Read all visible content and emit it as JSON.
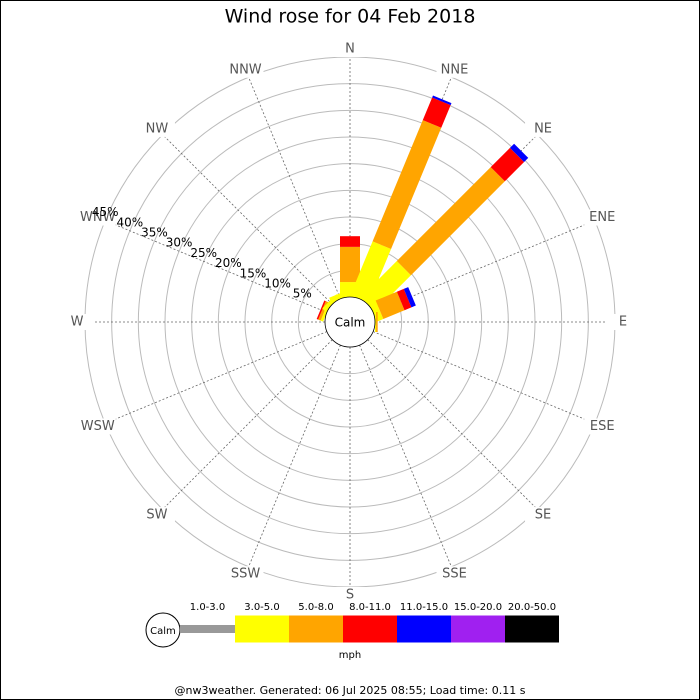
{
  "chart_data": {
    "type": "wind_rose",
    "title": "Wind rose for 04 Feb 2018",
    "directions": [
      "N",
      "NNE",
      "NE",
      "ENE",
      "E",
      "ESE",
      "SE",
      "SSE",
      "S",
      "SSW",
      "SW",
      "WSW",
      "W",
      "WNW",
      "NW",
      "NNW"
    ],
    "center_label": "Calm",
    "series": [
      {
        "name": "1.0-3.0",
        "color": "#999999",
        "values": [
          0,
          0,
          0,
          0,
          0,
          0,
          0,
          0,
          0,
          0,
          0,
          0,
          0,
          0,
          0,
          0
        ]
      },
      {
        "name": "3.0-5.0",
        "color": "#ffff00",
        "values": [
          2.8,
          10.9,
          9.6,
          1.3,
          0.2,
          0,
          0,
          0,
          0,
          0,
          0,
          0,
          0,
          0.5,
          0.8,
          1.0
        ]
      },
      {
        "name": "5.0-8.0",
        "color": "#ffa500",
        "values": [
          6.6,
          24.6,
          24.9,
          4.3,
          0.3,
          0,
          0,
          0,
          0,
          0,
          0,
          0,
          0,
          0.5,
          0,
          0
        ]
      },
      {
        "name": "8.0-11.0",
        "color": "#ff0000",
        "values": [
          2.0,
          4.6,
          5.1,
          1.4,
          0,
          0,
          0,
          0,
          0,
          0,
          0,
          0,
          0,
          0.3,
          0,
          0
        ]
      },
      {
        "name": "11.0-15.0",
        "color": "#0000ff",
        "values": [
          0,
          0.4,
          1.1,
          0.9,
          0,
          0,
          0,
          0,
          0,
          0,
          0,
          0,
          0,
          0,
          0,
          0
        ]
      },
      {
        "name": "15.0-20.0",
        "color": "#a020f0",
        "values": [
          0,
          0,
          0,
          0,
          0,
          0,
          0,
          0,
          0,
          0,
          0,
          0,
          0,
          0,
          0,
          0
        ]
      },
      {
        "name": "20.0-50.0",
        "color": "#000000",
        "values": [
          0,
          0,
          0,
          0,
          0,
          0,
          0,
          0,
          0,
          0,
          0,
          0,
          0,
          0,
          0,
          0
        ]
      }
    ],
    "rlim": [
      0,
      45
    ],
    "rticks": [
      {
        "value": 5,
        "label": "5%"
      },
      {
        "value": 10,
        "label": "10%"
      },
      {
        "value": 15,
        "label": "15%"
      },
      {
        "value": 20,
        "label": "20%"
      },
      {
        "value": 25,
        "label": "25%"
      },
      {
        "value": 30,
        "label": "30%"
      },
      {
        "value": 35,
        "label": "35%"
      },
      {
        "value": 40,
        "label": "40%"
      },
      {
        "value": 45,
        "label": "45%"
      }
    ],
    "unit_label": "mph",
    "footer": "@nw3weather. Generated: 06 Jul 2025 08:55; Load time: 0.11 s"
  }
}
